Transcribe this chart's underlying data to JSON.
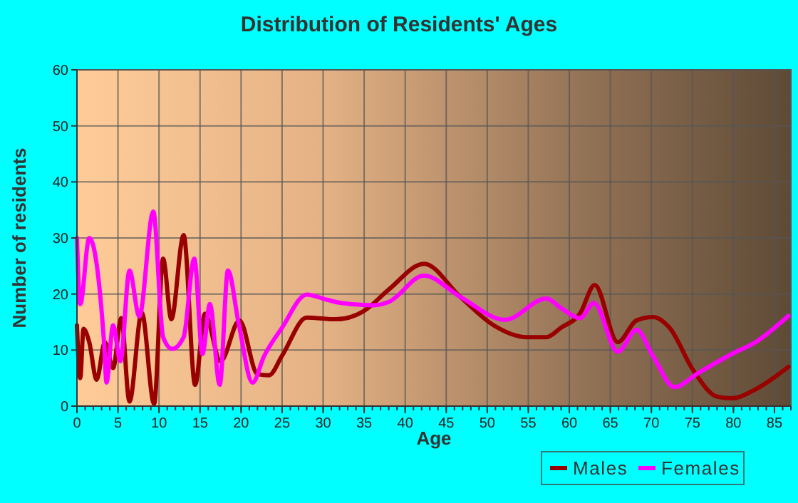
{
  "chart_data": {
    "type": "line",
    "title": "Distribution of Residents' Ages",
    "xlabel": "Age",
    "ylabel": "Number of residents",
    "xlim": [
      0,
      87
    ],
    "xticks": [
      0,
      5,
      10,
      15,
      20,
      25,
      30,
      35,
      40,
      45,
      50,
      55,
      60,
      65,
      70,
      75,
      80,
      85
    ],
    "ylim": [
      0,
      60
    ],
    "yticks": [
      0,
      10,
      20,
      30,
      40,
      50,
      60
    ],
    "grid": true,
    "legend": "bottom right",
    "series": [
      {
        "name": "Males",
        "color": "#990000",
        "x": [
          0,
          0.4,
          0.8,
          1.5,
          2.4,
          3.4,
          4.4,
          5.4,
          6.4,
          7.9,
          9.4,
          10.5,
          11.5,
          13,
          14.4,
          15.6,
          17.5,
          19.8,
          22,
          23.4,
          25,
          28,
          31.6,
          35,
          38,
          42.3,
          46.7,
          50.8,
          54.8,
          57.2,
          59,
          61.3,
          63.1,
          65.9,
          68.2,
          70.2,
          72.2,
          75.1,
          78,
          79.8,
          82.7,
          86.7
        ],
        "values": [
          14.4,
          5,
          13.8,
          11.4,
          4.7,
          11.4,
          6.8,
          15.7,
          0.8,
          16.7,
          0.4,
          26.3,
          15.5,
          30.5,
          3.8,
          16.5,
          8,
          15.3,
          5.7,
          5.5,
          9,
          15.8,
          15.5,
          17,
          20.8,
          25.4,
          19.5,
          14.4,
          12.3,
          12.3,
          14,
          16.5,
          21.6,
          11.4,
          15.3,
          15.9,
          14,
          6.4,
          1.7,
          1.4,
          3,
          7
        ]
      },
      {
        "name": "Females",
        "color": "#ff00ff",
        "x": [
          0,
          0.4,
          1.5,
          3.3,
          3.6,
          4.4,
          5.3,
          6.4,
          7.6,
          9.3,
          10.5,
          11.6,
          13,
          14.3,
          15.3,
          16.2,
          17.4,
          18.4,
          19.7,
          21.4,
          22.8,
          25,
          28,
          30.4,
          32.2,
          36.2,
          38,
          42.3,
          46.7,
          52.2,
          57.2,
          59,
          61.3,
          63,
          65.9,
          68.2,
          70.2,
          72.8,
          75.7,
          79.8,
          82.7,
          86.7
        ],
        "values": [
          30,
          18.2,
          30,
          11.4,
          4.2,
          14.4,
          8,
          24.2,
          16,
          34.7,
          12.3,
          10.2,
          12.3,
          26.3,
          9.3,
          18.2,
          3.8,
          24.2,
          14.8,
          4.2,
          8.9,
          14,
          19.9,
          19,
          18.4,
          18,
          18.6,
          23.3,
          19.5,
          15.4,
          19.2,
          17.5,
          15.7,
          18.4,
          9.7,
          13.6,
          8.9,
          3.4,
          5.9,
          9.3,
          11.4,
          16.1
        ]
      }
    ]
  }
}
